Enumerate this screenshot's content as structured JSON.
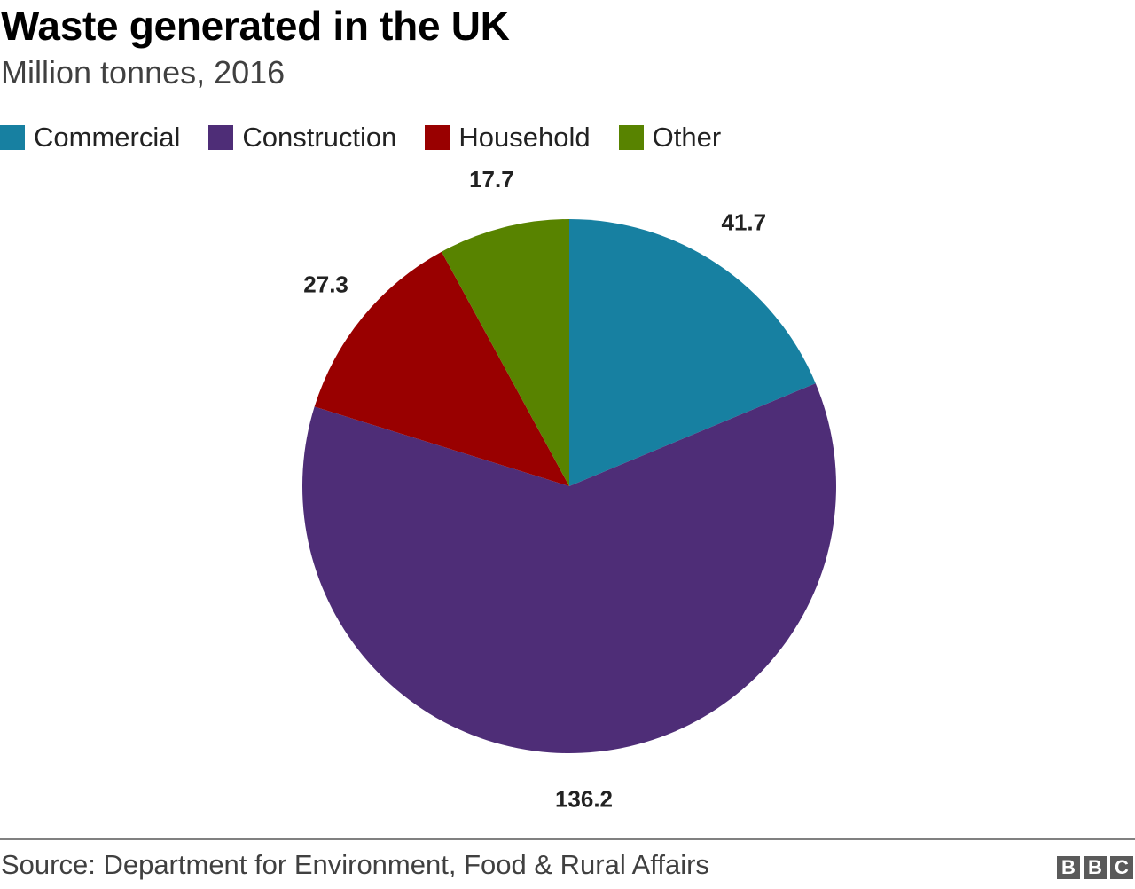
{
  "colors": {
    "Commercial": "#1780a1",
    "Construction": "#4e2d77",
    "Household": "#990000",
    "Other": "#588300"
  },
  "logo": [
    "B",
    "B",
    "C"
  ],
  "source": "Source: Department for Environment, Food & Rural Affairs",
  "chart_data": {
    "type": "pie",
    "title": "Waste generated in the UK",
    "subtitle": "Million tonnes, 2016",
    "legend_position": "top-left",
    "categories": [
      "Commercial",
      "Construction",
      "Household",
      "Other"
    ],
    "values": [
      41.7,
      136.2,
      27.3,
      17.7
    ],
    "data_labels": [
      "41.7",
      "136.2",
      "27.3",
      "17.7"
    ],
    "start_angle": "12 o'clock",
    "direction": "clockwise"
  }
}
